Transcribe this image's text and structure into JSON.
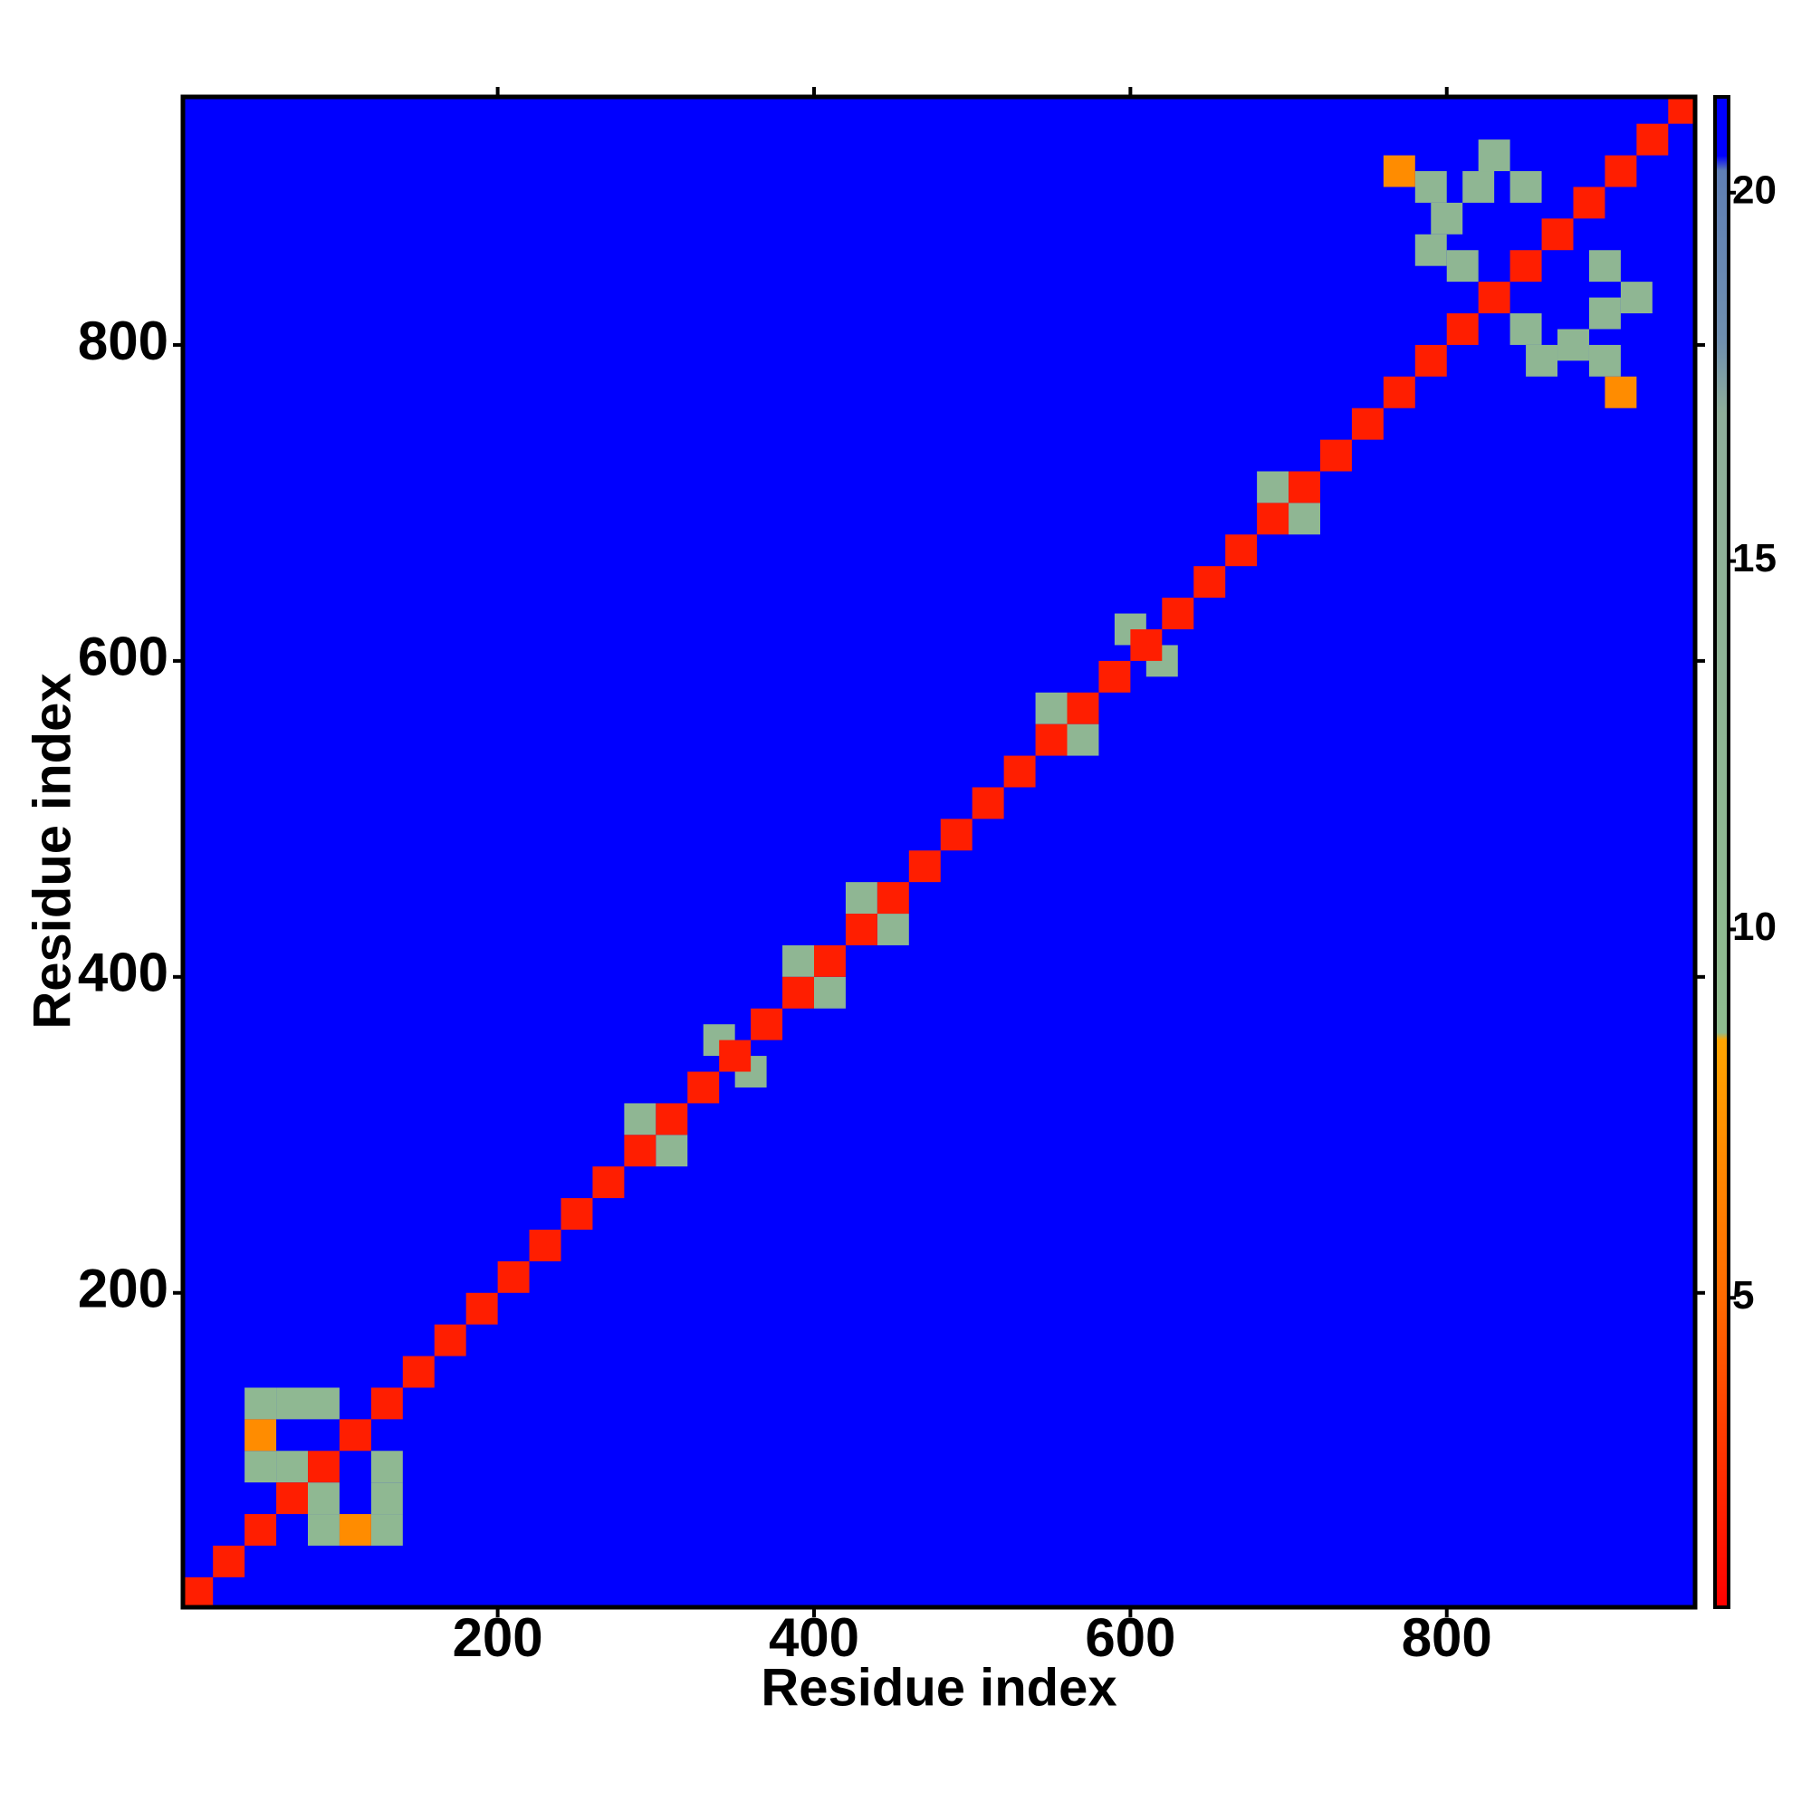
{
  "chart_data": {
    "type": "heatmap",
    "xlabel": "Residue index",
    "ylabel": "Residue index",
    "xlim": [
      1,
      957
    ],
    "ylim": [
      1,
      957
    ],
    "xticks": [
      200,
      400,
      600,
      800
    ],
    "yticks": [
      200,
      400,
      600,
      800
    ],
    "clim": [
      0.8,
      21.3
    ],
    "cticks": [
      5,
      10,
      15,
      20
    ],
    "colorscale": [
      {
        "value": 0.8,
        "color": "#ff0000"
      },
      {
        "value": 5,
        "color": "#ff6a00"
      },
      {
        "value": 8.5,
        "color": "#ffa500"
      },
      {
        "value": 8.6,
        "color": "#8fbc8f"
      },
      {
        "value": 17,
        "color": "#8fae9a"
      },
      {
        "value": 18,
        "color": "#6f8fb0"
      },
      {
        "value": 20.3,
        "color": "#5f7fb5"
      },
      {
        "value": 20.5,
        "color": "#0000ff"
      },
      {
        "value": 21.3,
        "color": "#0000ff"
      }
    ],
    "x": [
      50,
      90,
      70,
      130,
      50,
      130,
      90,
      130,
      50,
      110,
      70,
      90,
      790,
      900,
      810,
      850,
      830,
      920,
      790,
      860,
      880,
      800,
      820,
      900,
      770,
      910,
      850,
      900,
      290,
      310,
      340,
      360,
      390,
      410,
      430,
      450,
      550,
      570,
      600,
      620,
      690,
      710,
      10,
      30,
      50,
      70,
      90,
      110,
      130,
      150,
      170,
      190,
      210,
      230,
      250,
      270,
      290,
      310,
      330,
      350,
      370,
      390,
      410,
      430,
      450,
      470,
      490,
      510,
      530,
      550,
      570,
      590,
      610,
      630,
      650,
      670,
      690,
      710,
      730,
      750,
      770,
      790,
      810,
      830,
      850,
      870,
      890,
      910,
      930,
      950
    ],
    "y": [
      90,
      50,
      130,
      70,
      130,
      50,
      130,
      90,
      110,
      50,
      90,
      70,
      900,
      790,
      850,
      810,
      920,
      830,
      860,
      790,
      800,
      880,
      900,
      820,
      910,
      770,
      900,
      850,
      310,
      290,
      360,
      340,
      410,
      390,
      450,
      430,
      570,
      550,
      620,
      600,
      710,
      690,
      10,
      30,
      50,
      70,
      90,
      110,
      130,
      150,
      170,
      190,
      210,
      230,
      250,
      270,
      290,
      310,
      330,
      350,
      370,
      390,
      410,
      430,
      450,
      470,
      490,
      510,
      530,
      550,
      570,
      590,
      610,
      630,
      650,
      670,
      690,
      710,
      730,
      750,
      770,
      790,
      810,
      830,
      850,
      870,
      890,
      910,
      930,
      950
    ],
    "values": [
      11,
      11,
      11,
      11,
      11,
      11,
      11,
      11,
      7,
      7,
      11,
      11,
      12,
      12,
      12,
      12,
      12,
      12,
      12,
      12,
      12,
      12,
      12,
      12,
      7,
      7,
      12,
      12,
      12,
      12,
      12,
      12,
      12,
      12,
      12,
      12,
      12,
      12,
      12,
      12,
      12,
      12,
      2,
      2,
      2,
      2,
      2,
      2,
      2,
      2,
      2,
      2,
      2,
      2,
      2,
      2,
      2,
      2,
      2,
      2,
      2,
      2,
      2,
      2,
      2,
      2,
      2,
      2,
      2,
      2,
      2,
      2,
      2,
      2,
      2,
      2,
      2,
      2,
      2,
      2,
      2,
      2,
      2,
      2,
      2,
      2,
      2,
      2,
      2,
      2
    ]
  }
}
